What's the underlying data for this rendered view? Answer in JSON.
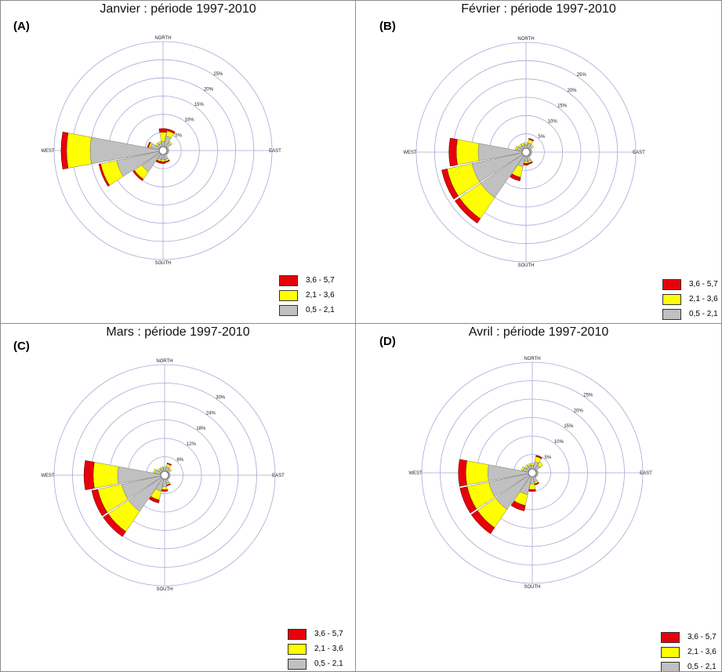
{
  "legend": [
    {
      "label": "3,6 -  5,7",
      "color": "#e8000b"
    },
    {
      "label": "2,1 -  3,6",
      "color": "#ffff00"
    },
    {
      "label": "0,5 -  2,1",
      "color": "#c0c0c0"
    }
  ],
  "directions": {
    "north": "NORTH",
    "east": "EAST",
    "south": "SOUTH",
    "west": "WEST"
  },
  "chart_data": [
    {
      "type": "wind-rose",
      "title": "Janvier : période 1997-2010",
      "panel_label": "(A)",
      "rmax": 30,
      "ring_labels": [
        "5%",
        "10%",
        "15%",
        "20%",
        "25%"
      ],
      "ring_values": [
        5,
        10,
        15,
        20,
        25
      ],
      "directions_deg": [
        0,
        22.5,
        45,
        67.5,
        90,
        112.5,
        135,
        157.5,
        180,
        202.5,
        225,
        247.5,
        270,
        292.5,
        315,
        337.5
      ],
      "series": [
        {
          "name": "0,5 -  2,1",
          "values": [
            1.5,
            3,
            1.5,
            0.5,
            0.5,
            0.5,
            0.5,
            1.5,
            1.5,
            1.5,
            6,
            12,
            19,
            2.5,
            1,
            1
          ]
        },
        {
          "name": "2,1 -  3,6",
          "values": [
            2.5,
            1.5,
            0.5,
            0,
            0,
            0,
            0,
            0.5,
            0.5,
            0.5,
            2.5,
            4.5,
            6.5,
            0.5,
            0.5,
            0.5
          ]
        },
        {
          "name": "3,6 -  5,7",
          "values": [
            1,
            0.5,
            0,
            0,
            0,
            0,
            0,
            0.3,
            0.5,
            0.5,
            0.5,
            0.5,
            1.5,
            0.3,
            0,
            0
          ]
        }
      ]
    },
    {
      "type": "wind-rose",
      "title": "Février : période 1997-2010",
      "panel_label": "(B)",
      "rmax": 30,
      "ring_labels": [
        "5%",
        "10%",
        "15%",
        "20%",
        "25%"
      ],
      "ring_values": [
        5,
        10,
        15,
        20,
        25
      ],
      "directions_deg": [
        0,
        22.5,
        45,
        67.5,
        90,
        112.5,
        135,
        157.5,
        180,
        202.5,
        225,
        247.5,
        270,
        292.5,
        315,
        337.5
      ],
      "series": [
        {
          "name": "0,5 -  2,1",
          "values": [
            1,
            1.5,
            1,
            0.5,
            0.5,
            0.5,
            0.5,
            1.5,
            1.5,
            3,
            14,
            14,
            12,
            1.5,
            1,
            1
          ]
        },
        {
          "name": "2,1 -  3,6",
          "values": [
            0.5,
            1,
            0.5,
            0,
            0,
            0,
            0,
            0.5,
            0.5,
            3,
            7,
            7,
            6,
            0.5,
            0.5,
            0.5
          ]
        },
        {
          "name": "3,6 -  5,7",
          "values": [
            0,
            0.3,
            0,
            0,
            0,
            0,
            0,
            0.3,
            0.5,
            1,
            1.5,
            1.5,
            2,
            0,
            0,
            0
          ]
        }
      ]
    },
    {
      "type": "wind-rose",
      "title": "Mars : période 1997-2010",
      "panel_label": "(C)",
      "rmax": 36,
      "ring_labels": [
        "6%",
        "12%",
        "18%",
        "24%",
        "30%"
      ],
      "ring_values": [
        6,
        12,
        18,
        24,
        30
      ],
      "directions_deg": [
        0,
        22.5,
        45,
        67.5,
        90,
        112.5,
        135,
        157.5,
        180,
        202.5,
        225,
        247.5,
        270,
        292.5,
        315,
        337.5
      ],
      "series": [
        {
          "name": "0,5 -  2,1",
          "values": [
            1,
            1.5,
            1,
            0.5,
            0.5,
            0.5,
            0.5,
            1.5,
            2.5,
            4,
            13,
            13,
            14,
            2,
            1,
            1
          ]
        },
        {
          "name": "2,1 -  3,6",
          "values": [
            0.5,
            1,
            0.5,
            0,
            0,
            0,
            0,
            0.5,
            1,
            3,
            8,
            8,
            8,
            0.5,
            0.5,
            0.5
          ]
        },
        {
          "name": "3,6 -  5,7",
          "values": [
            0,
            0.3,
            0,
            0,
            0,
            0,
            0,
            0.3,
            0.5,
            1,
            2,
            2,
            3,
            0,
            0,
            0
          ]
        }
      ]
    },
    {
      "type": "wind-rose",
      "title": "Avril : période 1997-2010",
      "panel_label": "(D)",
      "rmax": 30,
      "ring_labels": [
        "5%",
        "10%",
        "15%",
        "20%",
        "25%"
      ],
      "ring_values": [
        5,
        10,
        15,
        20,
        25
      ],
      "directions_deg": [
        0,
        22.5,
        45,
        67.5,
        90,
        112.5,
        135,
        157.5,
        180,
        202.5,
        225,
        247.5,
        270,
        292.5,
        315,
        337.5
      ],
      "series": [
        {
          "name": "0,5 -  2,1",
          "values": [
            1,
            2,
            1.5,
            0.5,
            0.5,
            0.5,
            0.5,
            1.5,
            2,
            5,
            11,
            11,
            11,
            1.5,
            1,
            1
          ]
        },
        {
          "name": "2,1 -  3,6",
          "values": [
            0.5,
            1.5,
            1,
            0,
            0,
            0,
            0,
            0.5,
            1.5,
            3,
            6,
            6,
            6,
            0.5,
            0.5,
            0.5
          ]
        },
        {
          "name": "3,6 -  5,7",
          "values": [
            0,
            0.3,
            0,
            0,
            0,
            0,
            0,
            0.3,
            0.5,
            1.5,
            2,
            2,
            2,
            0,
            0,
            0
          ]
        }
      ]
    }
  ]
}
